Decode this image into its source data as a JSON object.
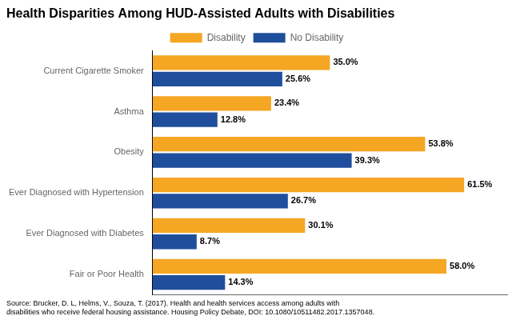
{
  "chart_data": {
    "type": "bar",
    "orientation": "horizontal",
    "title": "Health Disparities Among HUD-Assisted Adults with Disabilities",
    "annotations": [
      "Source: Brucker, D. L, Helms, V., Souza, T. (2017). Health and health services access among adults with\ndisabilities who receive federal housing assistance. Housing Policy Debate, DOI: 10.1080/10511482.2017.1357048."
    ],
    "categories": [
      "Current Cigarette Smoker",
      "Asthma",
      "Obesity",
      "Ever Diagnosed with Hypertension",
      "Ever Diagnosed with Diabetes",
      "Fair or Poor Health"
    ],
    "series": [
      {
        "name": "Disability",
        "color": "#F5A623",
        "values": [
          35.0,
          23.4,
          53.8,
          61.5,
          30.1,
          58.0
        ],
        "value_labels": [
          "35.0%",
          "23.4%",
          "53.8%",
          "61.5%",
          "30.1%",
          "58.0%"
        ]
      },
      {
        "name": "No Disability",
        "color": "#1F4E9C",
        "values": [
          25.6,
          12.8,
          39.3,
          26.7,
          8.7,
          14.3
        ],
        "value_labels": [
          "25.6%",
          "12.8%",
          "39.3%",
          "26.7%",
          "8.7%",
          "14.3%"
        ]
      }
    ],
    "xlim": [
      0,
      70
    ],
    "grid": false,
    "legend": "top",
    "data_labels": true,
    "tick_labels": "y"
  }
}
